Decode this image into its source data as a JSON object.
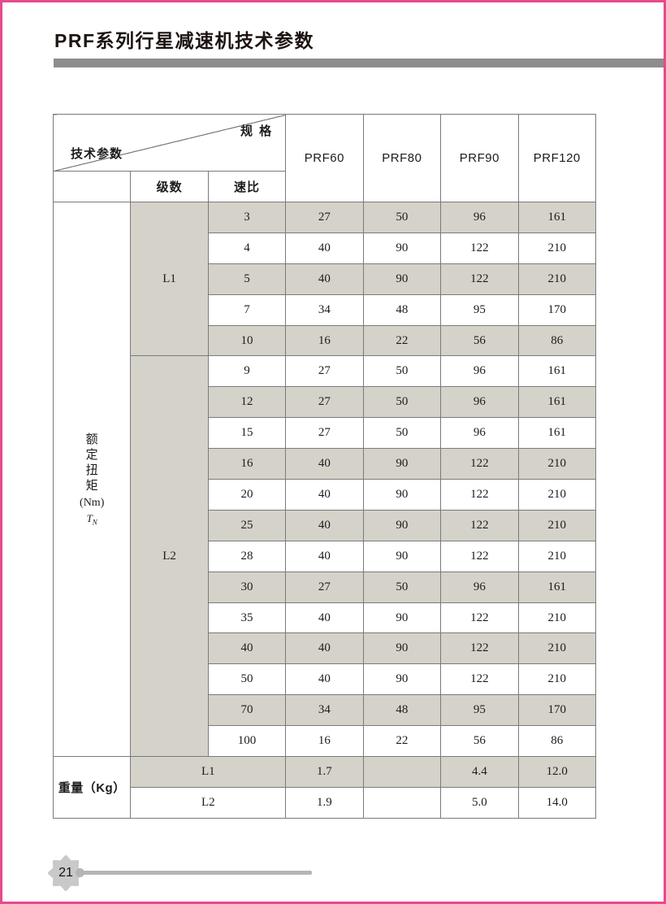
{
  "page": {
    "title": "PRF系列行星减速机技术参数",
    "page_number": "21"
  },
  "colors": {
    "border_pink": "#e64b8d",
    "title_bar_gray": "#8d8d8d",
    "cell_shade": "#d5d2ca",
    "grid_line": "#7a7a7a",
    "footer_gray": "#b5b5b5"
  },
  "table": {
    "corner": {
      "top_right": "规 格",
      "bottom_left": "技术参数"
    },
    "col_headers": [
      "PRF60",
      "PRF80",
      "PRF90",
      "PRF120"
    ],
    "sub_headers": {
      "stages": "级数",
      "ratio": "速比"
    },
    "row_header": {
      "label": "额定扭矩",
      "unit": "(Nm)",
      "symbol": "T",
      "symbol_sub": "N"
    },
    "torque_sections": [
      {
        "stage": "L1",
        "rows": [
          {
            "ratio": "3",
            "values": [
              "27",
              "50",
              "96",
              "161"
            ],
            "shaded": true
          },
          {
            "ratio": "4",
            "values": [
              "40",
              "90",
              "122",
              "210"
            ],
            "shaded": false
          },
          {
            "ratio": "5",
            "values": [
              "40",
              "90",
              "122",
              "210"
            ],
            "shaded": true
          },
          {
            "ratio": "7",
            "values": [
              "34",
              "48",
              "95",
              "170"
            ],
            "shaded": false
          },
          {
            "ratio": "10",
            "values": [
              "16",
              "22",
              "56",
              "86"
            ],
            "shaded": true
          }
        ]
      },
      {
        "stage": "L2",
        "rows": [
          {
            "ratio": "9",
            "values": [
              "27",
              "50",
              "96",
              "161"
            ],
            "shaded": false
          },
          {
            "ratio": "12",
            "values": [
              "27",
              "50",
              "96",
              "161"
            ],
            "shaded": true
          },
          {
            "ratio": "15",
            "values": [
              "27",
              "50",
              "96",
              "161"
            ],
            "shaded": false
          },
          {
            "ratio": "16",
            "values": [
              "40",
              "90",
              "122",
              "210"
            ],
            "shaded": true
          },
          {
            "ratio": "20",
            "values": [
              "40",
              "90",
              "122",
              "210"
            ],
            "shaded": false
          },
          {
            "ratio": "25",
            "values": [
              "40",
              "90",
              "122",
              "210"
            ],
            "shaded": true
          },
          {
            "ratio": "28",
            "values": [
              "40",
              "90",
              "122",
              "210"
            ],
            "shaded": false
          },
          {
            "ratio": "30",
            "values": [
              "27",
              "50",
              "96",
              "161"
            ],
            "shaded": true
          },
          {
            "ratio": "35",
            "values": [
              "40",
              "90",
              "122",
              "210"
            ],
            "shaded": false
          },
          {
            "ratio": "40",
            "values": [
              "40",
              "90",
              "122",
              "210"
            ],
            "shaded": true
          },
          {
            "ratio": "50",
            "values": [
              "40",
              "90",
              "122",
              "210"
            ],
            "shaded": false
          },
          {
            "ratio": "70",
            "values": [
              "34",
              "48",
              "95",
              "170"
            ],
            "shaded": true
          },
          {
            "ratio": "100",
            "values": [
              "16",
              "22",
              "56",
              "86"
            ],
            "shaded": false
          }
        ]
      }
    ],
    "weight": {
      "label": "重量（Kg）",
      "rows": [
        {
          "stage": "L1",
          "values": [
            "1.7",
            "",
            "4.4",
            "12.0"
          ],
          "shaded": true
        },
        {
          "stage": "L2",
          "values": [
            "1.9",
            "",
            "5.0",
            "14.0"
          ],
          "shaded": false
        }
      ]
    }
  }
}
